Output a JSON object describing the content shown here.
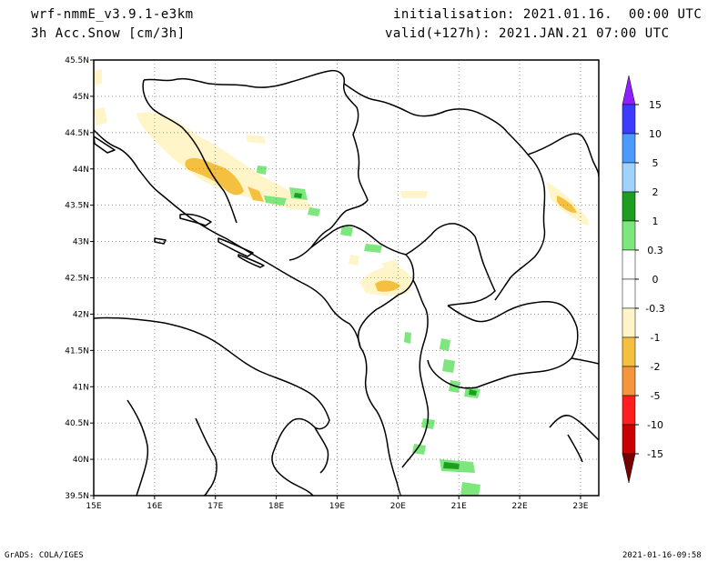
{
  "header": {
    "model": "wrf-nmmE_v3.9.1-e3km",
    "field": "3h Acc.Snow [cm/3h]",
    "init": "initialisation: 2021.01.16.  00:00 UTC",
    "valid": "valid(+127h): 2021.JAN.21 07:00 UTC"
  },
  "axes": {
    "lat_labels": [
      "45.5N",
      "45N",
      "44.5N",
      "44N",
      "43.5N",
      "43N",
      "42.5N",
      "42N",
      "41.5N",
      "41N",
      "40.5N",
      "40N",
      "39.5N"
    ],
    "lat_values": [
      45.5,
      45,
      44.5,
      44,
      43.5,
      43,
      42.5,
      42,
      41.5,
      41,
      40.5,
      40,
      39.5
    ],
    "lon_labels": [
      "15E",
      "16E",
      "17E",
      "18E",
      "19E",
      "20E",
      "21E",
      "22E",
      "23E"
    ],
    "lon_values": [
      15,
      16,
      17,
      18,
      19,
      20,
      21,
      22,
      23
    ],
    "lon_range": [
      15,
      23.3
    ],
    "lat_range": [
      39.5,
      45.5
    ],
    "grid": "dotted"
  },
  "colorbar": {
    "labels": [
      "15",
      "10",
      "5",
      "2",
      "1",
      "0.3",
      "0",
      "-0.3",
      "-1",
      "-2",
      "-5",
      "-10",
      "-15"
    ],
    "colors": [
      "#8f20ff",
      "#3c3cff",
      "#4b9bff",
      "#a0d2ff",
      "#1e9e1e",
      "#7de67d",
      "#ffffff",
      "#ffffff",
      "#fff5c8",
      "#f5c040",
      "#f5963c",
      "#ff1e1e",
      "#c80000",
      "#780000"
    ]
  },
  "footer": {
    "left": "GrADS: COLA/IGES",
    "right": "2021-01-16-09:58"
  }
}
